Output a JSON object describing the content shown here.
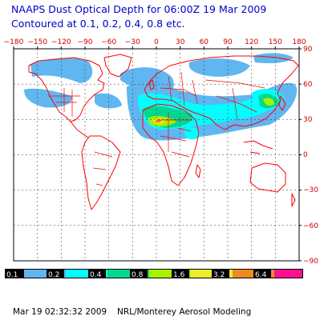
{
  "title_line1": "NAAPS Dust Optical Depth for 06:00Z 19 Mar 2009",
  "title_line2": "Contoured at 0.1, 0.2, 0.4, 0.8 etc.",
  "top_ticks": [
    "−180",
    "−150",
    "−120",
    "−90",
    "−60",
    "−30",
    "0",
    "30",
    "60",
    "90",
    "120",
    "150",
    "180"
  ],
  "right_ticks": [
    "90",
    "60",
    "30",
    "0",
    "−30",
    "−60",
    "−90"
  ],
  "legend": [
    {
      "label": "0.1",
      "color": "#5fb6f0"
    },
    {
      "label": "0.2",
      "color": "#00ffff"
    },
    {
      "label": "0.4",
      "color": "#00d890"
    },
    {
      "label": "0.8",
      "color": "#a8f000"
    },
    {
      "label": "1.6",
      "color": "#ecec30"
    },
    {
      "label": "3.2",
      "color": "#f08a20"
    },
    {
      "label": "6.4",
      "color": "#ff1090"
    }
  ],
  "footer_timestamp": "Mar 19 02:32:32 2009",
  "footer_credit": "NRL/Monterey Aerosol Modeling",
  "colors": {
    "title": "#0000c8",
    "map_lines": "#ff0000",
    "frame": "#000000"
  }
}
